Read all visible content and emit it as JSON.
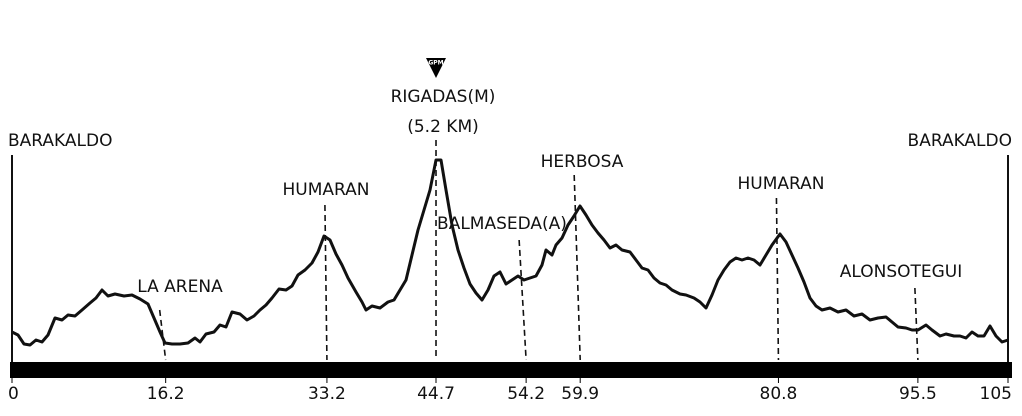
{
  "chart_data": {
    "type": "profile",
    "start_label": "BARAKALDO",
    "end_label": "BARAKALDO",
    "xlim": [
      0,
      105
    ],
    "xticks": [
      0,
      16.2,
      33.2,
      44.7,
      54.2,
      59.9,
      80.8,
      95.5,
      105
    ],
    "landmarks": [
      {
        "label": "LA ARENA",
        "km": 16.2
      },
      {
        "label": "HUMARAN",
        "km": 33.2
      },
      {
        "label": "RIGADAS(M)",
        "sublabel": "(5.2 KM)",
        "icon": "GPM",
        "km": 44.7
      },
      {
        "label": "BALMASEDA(A)",
        "km": 54.2
      },
      {
        "label": "HERBOSA",
        "km": 59.9
      },
      {
        "label": "HUMARAN",
        "km": 80.8
      },
      {
        "label": "ALONSOTEGUI",
        "km": 95.5
      }
    ]
  }
}
